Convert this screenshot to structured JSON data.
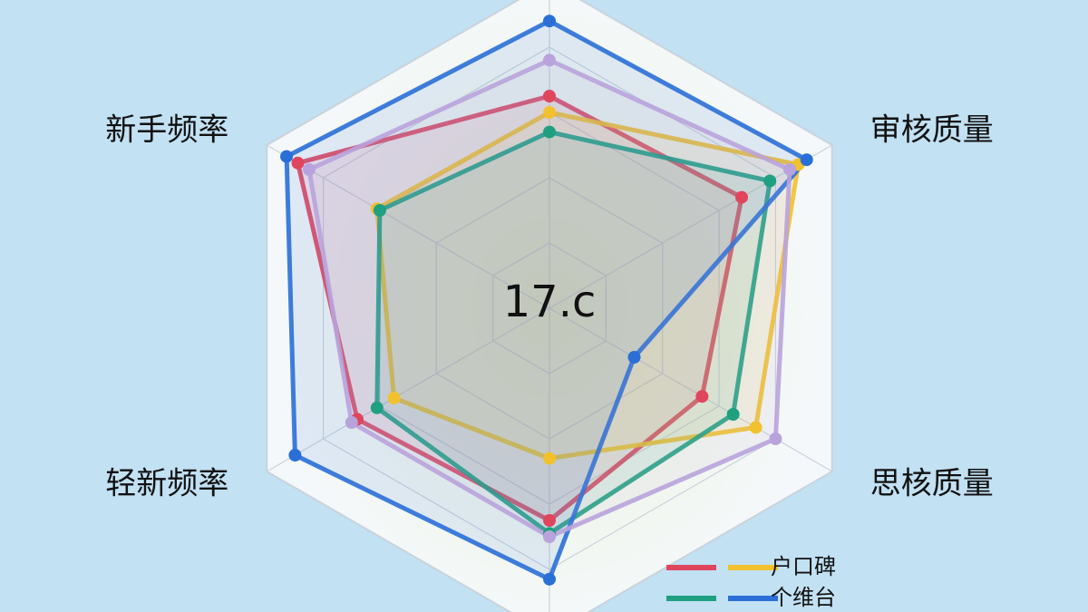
{
  "chart_data": {
    "type": "radar",
    "center_text": "17.c",
    "categories": [
      null,
      "审核质量",
      "思核质量",
      null,
      "轻新频率",
      "新手频率"
    ],
    "ylim": [
      0,
      100
    ],
    "series": [
      {
        "name": null,
        "color": "#e0455e",
        "values": [
          65,
          68,
          54,
          65,
          68,
          89
        ]
      },
      {
        "name": "户口碑",
        "color": "#f2c12e",
        "values": [
          60,
          88,
          73,
          46,
          55,
          61
        ]
      },
      {
        "name": null,
        "color": "#1fa080",
        "values": [
          54,
          78,
          65,
          69,
          61,
          60
        ]
      },
      {
        "name": "个维台",
        "color": "#2a6fd6",
        "values": [
          88,
          91,
          30,
          83,
          90,
          93
        ]
      },
      {
        "name": null,
        "color": "#b9a3dc",
        "values": [
          76,
          85,
          80,
          70,
          70,
          85
        ]
      }
    ]
  }
}
